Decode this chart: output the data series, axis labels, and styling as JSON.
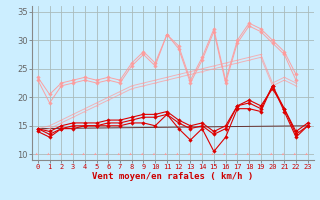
{
  "xlabel": "Vent moyen/en rafales ( km/h )",
  "bg_color": "#cceeff",
  "grid_color": "#aacccc",
  "xlim": [
    -0.5,
    23.5
  ],
  "ylim": [
    9,
    36
  ],
  "yticks": [
    10,
    15,
    20,
    25,
    30,
    35
  ],
  "xticks": [
    0,
    1,
    2,
    3,
    4,
    5,
    6,
    7,
    8,
    9,
    10,
    11,
    12,
    13,
    14,
    15,
    16,
    17,
    18,
    19,
    20,
    21,
    22,
    23
  ],
  "line_light1": [
    23.0,
    19.0,
    22.0,
    22.5,
    23.0,
    22.5,
    23.0,
    22.5,
    25.5,
    27.5,
    25.5,
    31.0,
    28.5,
    22.5,
    26.5,
    31.5,
    22.5,
    29.5,
    32.5,
    31.5,
    29.5,
    27.5,
    23.0,
    null
  ],
  "line_light2": [
    23.5,
    20.5,
    22.5,
    23.0,
    23.5,
    23.0,
    23.5,
    23.0,
    26.0,
    28.0,
    26.0,
    31.0,
    29.0,
    23.0,
    27.0,
    32.0,
    23.0,
    30.0,
    33.0,
    32.0,
    30.0,
    28.0,
    24.0,
    null
  ],
  "line_trend_light1": [
    14.5,
    15.0,
    16.0,
    17.0,
    18.0,
    19.0,
    20.0,
    21.0,
    22.0,
    22.5,
    23.0,
    23.5,
    24.0,
    24.5,
    25.0,
    25.5,
    26.0,
    26.5,
    27.0,
    27.5,
    22.5,
    23.5,
    22.5,
    null
  ],
  "line_trend_light2": [
    14.0,
    14.5,
    15.5,
    16.5,
    17.5,
    18.5,
    19.5,
    20.5,
    21.5,
    22.0,
    22.5,
    23.0,
    23.5,
    24.0,
    24.5,
    25.0,
    25.5,
    26.0,
    26.5,
    27.0,
    22.0,
    23.0,
    22.0,
    null
  ],
  "line_dark1": [
    14.0,
    13.0,
    14.5,
    14.5,
    15.0,
    15.0,
    15.0,
    15.0,
    15.5,
    15.5,
    15.0,
    17.0,
    14.5,
    12.5,
    14.5,
    10.5,
    13.0,
    18.0,
    18.0,
    17.5,
    22.0,
    17.5,
    13.0,
    15.0
  ],
  "line_dark2": [
    14.5,
    13.5,
    14.5,
    15.0,
    15.0,
    15.0,
    15.5,
    15.5,
    16.0,
    16.5,
    16.5,
    17.0,
    15.5,
    14.5,
    15.0,
    13.5,
    14.5,
    18.5,
    19.0,
    18.0,
    22.0,
    18.0,
    13.5,
    15.0
  ],
  "line_dark3": [
    14.5,
    14.0,
    15.0,
    15.5,
    15.5,
    15.5,
    16.0,
    16.0,
    16.5,
    17.0,
    17.0,
    17.5,
    16.0,
    15.0,
    15.5,
    14.0,
    15.0,
    18.5,
    19.5,
    18.5,
    21.5,
    18.0,
    14.0,
    15.5
  ],
  "line_straight": [
    [
      0,
      23
    ],
    [
      14.5,
      15.0
    ]
  ],
  "color_light": "#ff9999",
  "color_dark": "#dd0000",
  "color_straight": "#663333",
  "xlabel_fontsize": 6.5,
  "ytick_fontsize": 6,
  "xtick_fontsize": 5
}
